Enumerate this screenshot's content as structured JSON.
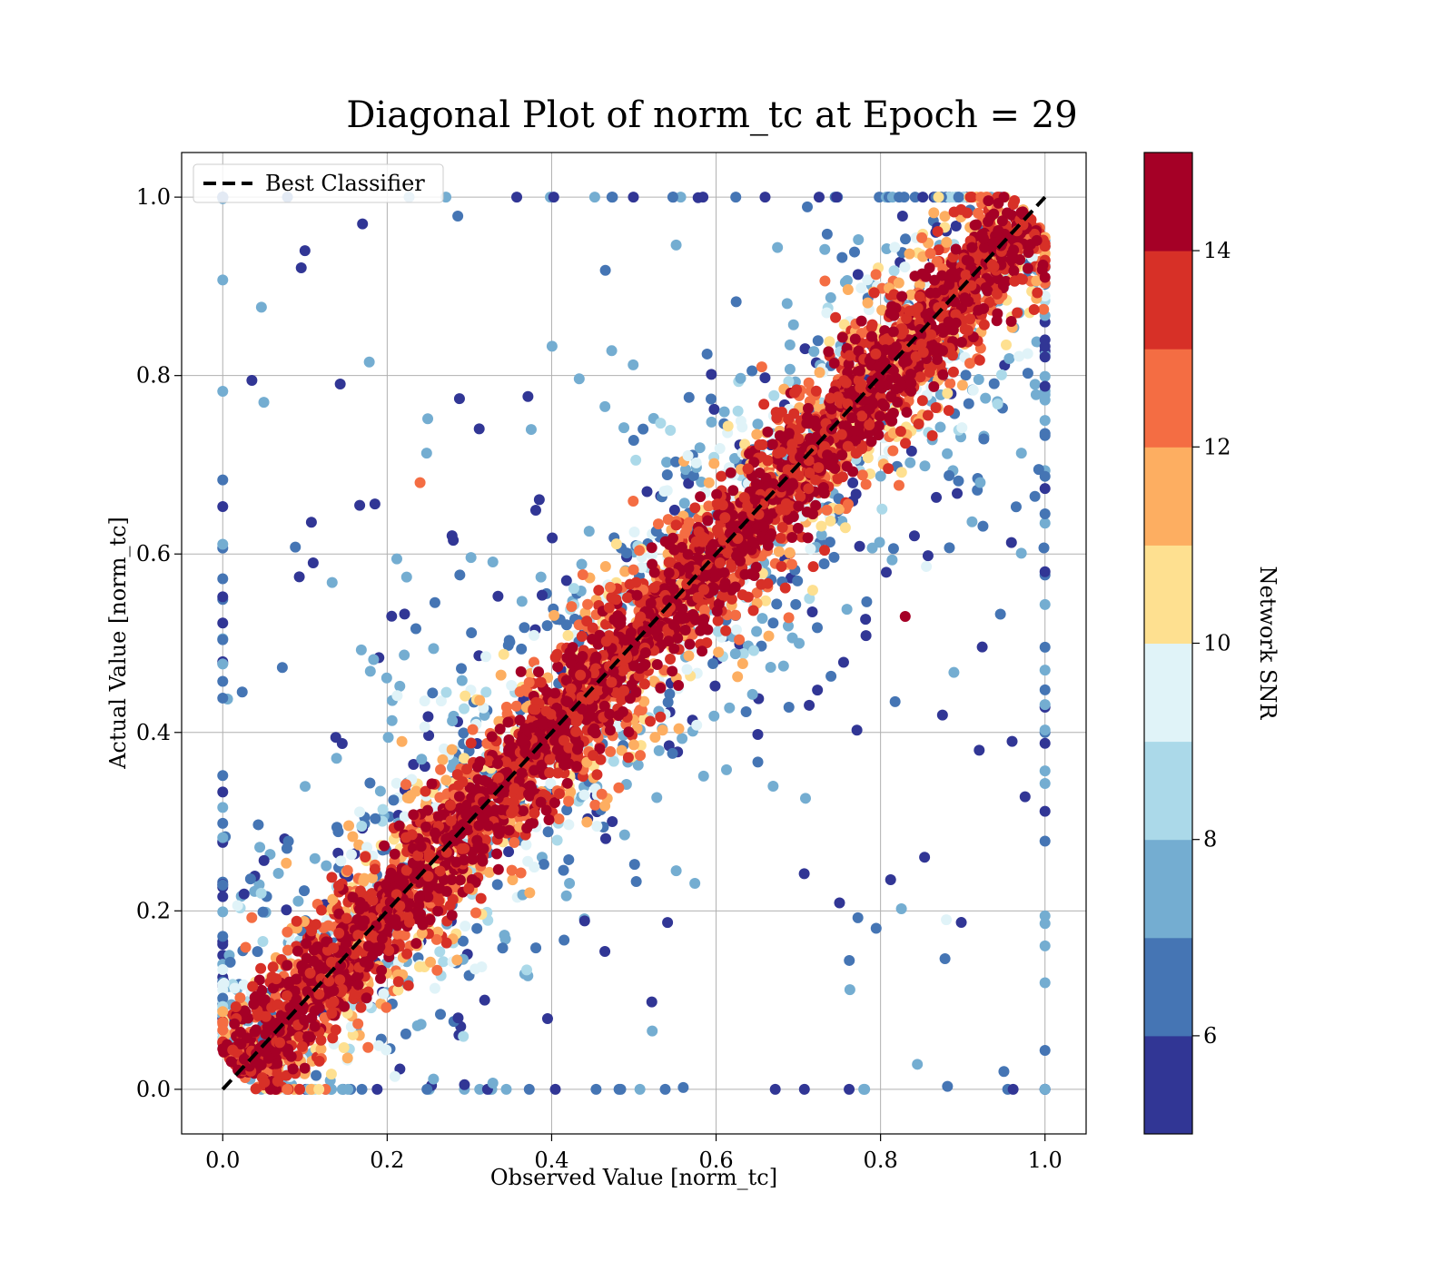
{
  "chart_data": {
    "type": "scatter",
    "title": "Diagonal Plot of norm_tc at Epoch = 29",
    "xlabel": "Observed Value [norm_tc]",
    "ylabel": "Actual Value [norm_tc]",
    "xlim": [
      -0.05,
      1.05
    ],
    "ylim": [
      -0.05,
      1.05
    ],
    "xticks": [
      "0.0",
      "0.2",
      "0.4",
      "0.6",
      "0.8",
      "1.0"
    ],
    "yticks": [
      "0.0",
      "0.2",
      "0.4",
      "0.6",
      "0.8",
      "1.0"
    ],
    "grid": true,
    "legend": {
      "placement": "upper-left",
      "entries": [
        {
          "label": "Best Classifier",
          "style": "black dashed line"
        }
      ]
    },
    "reference_line": {
      "name": "Best Classifier",
      "x": [
        0.0,
        1.0
      ],
      "y": [
        0.0,
        1.0
      ],
      "color": "#000000",
      "dash": "dashed"
    },
    "colorbar": {
      "label": "Network SNR",
      "range": [
        5,
        15
      ],
      "ticks": [
        "6",
        "8",
        "10",
        "12",
        "14"
      ],
      "tick_values": [
        6,
        8,
        10,
        12,
        14
      ],
      "colors": [
        "#313695",
        "#4575b4",
        "#74add1",
        "#abd9e9",
        "#e0f3f8",
        "#fee090",
        "#fdae61",
        "#f46d43",
        "#d73027",
        "#a50026"
      ]
    },
    "series": [
      {
        "description_type": "scatter",
        "color_by": "Network SNR",
        "representative_points": [
          {
            "x": 0.05,
            "y": 0.77,
            "snr": 7
          },
          {
            "x": 0.1,
            "y": 0.94,
            "snr": 5
          },
          {
            "x": 0.11,
            "y": 0.59,
            "snr": 5
          },
          {
            "x": 0.17,
            "y": 0.97,
            "snr": 5
          },
          {
            "x": 0.24,
            "y": 0.68,
            "snr": 12
          },
          {
            "x": 0.83,
            "y": 0.53,
            "snr": 15
          },
          {
            "x": 0.92,
            "y": 0.38,
            "snr": 5
          },
          {
            "x": 0.96,
            "y": 0.39,
            "snr": 5
          },
          {
            "x": 0.95,
            "y": 0.02,
            "snr": 6
          },
          {
            "x": 0.88,
            "y": 0.19,
            "snr": 9
          },
          {
            "x": 0.5,
            "y": 0.5,
            "snr": 15
          },
          {
            "x": 0.8,
            "y": 0.8,
            "snr": 15
          },
          {
            "x": 0.2,
            "y": 0.2,
            "snr": 15
          }
        ]
      }
    ]
  }
}
